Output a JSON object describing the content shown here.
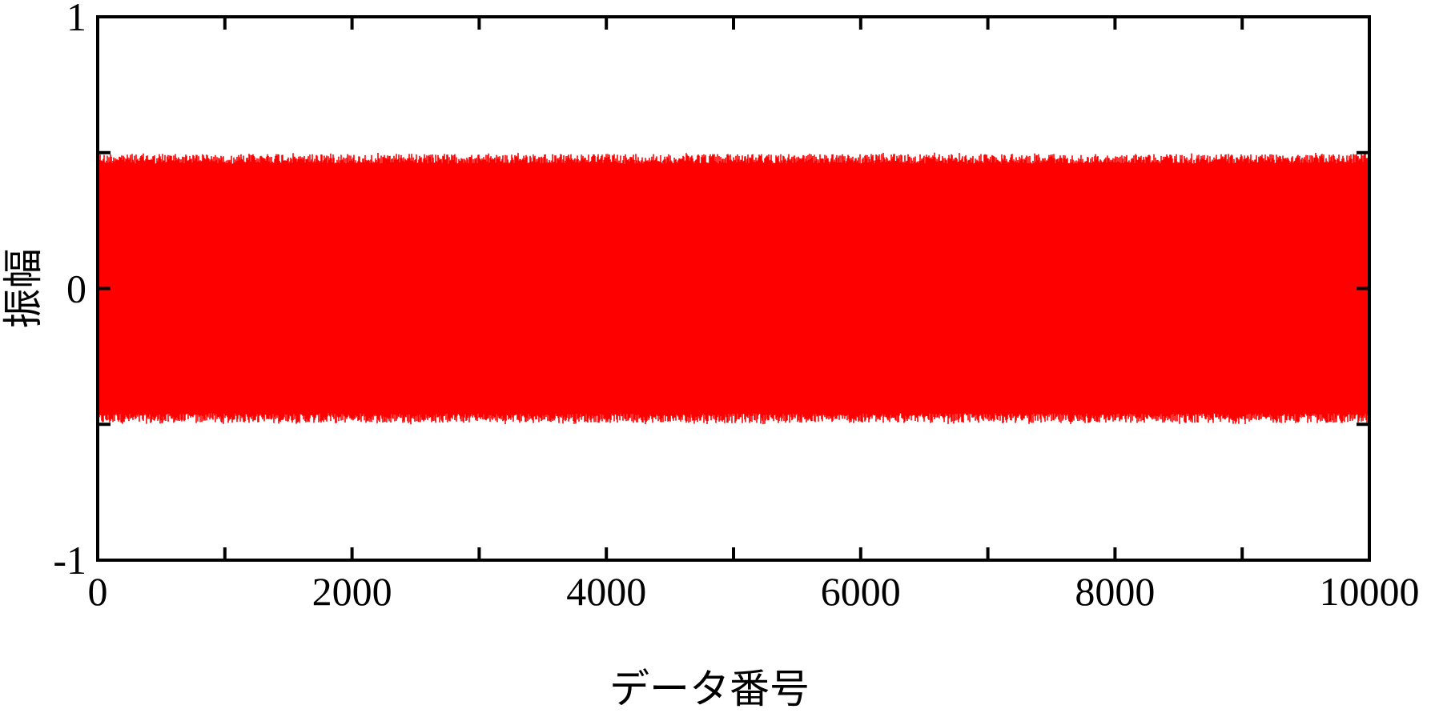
{
  "chart_data": {
    "type": "line",
    "title": "",
    "xlabel": "データ番号",
    "ylabel": "振幅",
    "xlim": [
      0,
      10000
    ],
    "ylim": [
      -1,
      1
    ],
    "x_ticks": [
      0,
      2000,
      4000,
      6000,
      8000,
      10000
    ],
    "x_tick_labels": [
      "0",
      "2000",
      "4000",
      "6000",
      "8000",
      "10000"
    ],
    "x_minor_ticks": [
      1000,
      3000,
      5000,
      7000,
      9000
    ],
    "y_ticks": [
      -1,
      0,
      1
    ],
    "y_tick_labels": [
      "-1",
      "0",
      "1"
    ],
    "y_minor_ticks": [
      -0.5,
      0.5
    ],
    "grid": false,
    "legend": "none",
    "series": [
      {
        "color": "#ff0000",
        "x_range": [
          0,
          10000
        ],
        "num_points": 10000,
        "envelope": {
          "max": 0.5,
          "min": -0.5
        },
        "description_of_values": "dense oscillating signal bounded between -0.5 and 0.5"
      }
    ]
  }
}
